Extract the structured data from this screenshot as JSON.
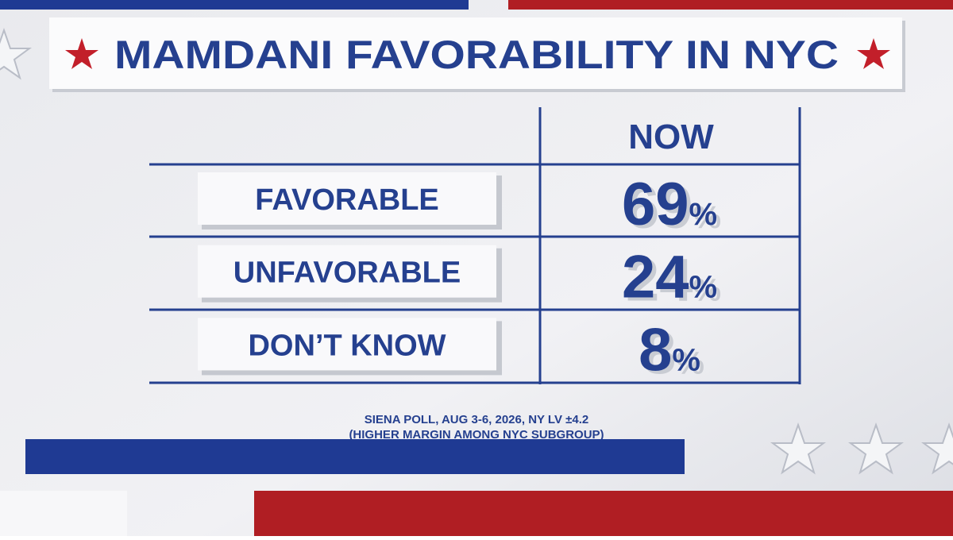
{
  "title": "MAMDANI FAVORABILITY IN NYC",
  "table": {
    "header": "NOW",
    "rows": [
      {
        "label": "FAVORABLE",
        "value": 69,
        "unit": "%"
      },
      {
        "label": "UNFAVORABLE",
        "value": 24,
        "unit": "%"
      },
      {
        "label": "DON’T KNOW",
        "value": 8,
        "unit": "%"
      }
    ]
  },
  "source": [
    "SIENA POLL, AUG 3-6, 2026, NY LV ±4.2",
    "(HIGHER MARGIN AMONG NYC SUBGROUP)"
  ]
}
